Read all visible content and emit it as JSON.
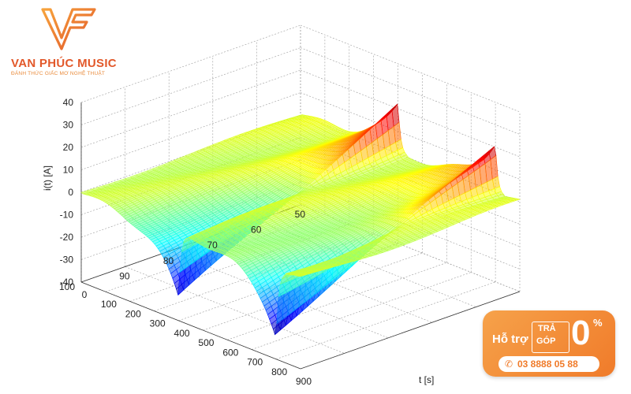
{
  "logo": {
    "name": "VAN PHÚC MUSIC",
    "tagline": "ĐÁNH THỨC GIẤC MƠ NGHỆ THUẬT",
    "brand_color": "#e2582a"
  },
  "promo": {
    "support": "Hỗ trợ",
    "tra": "TRẢ",
    "gop": "GÓP",
    "zero": "0",
    "percent": "%",
    "phone": "03 8888 05 88",
    "phone_icon": "phone-icon",
    "color": "#f07b2a"
  },
  "chart_data": {
    "type": "surface",
    "zlabel": "i(t) [A]",
    "xlabel": "t [s]",
    "ylabel": "",
    "zlim": [
      -40,
      40
    ],
    "xlim": [
      0,
      900
    ],
    "ylim": [
      50,
      100
    ],
    "z_ticks": [
      "40",
      "30",
      "20",
      "10",
      "0",
      "-10",
      "-20",
      "-30",
      "-40"
    ],
    "x_ticks": [
      "0",
      "100",
      "200",
      "300",
      "400",
      "500",
      "600",
      "700",
      "800",
      "900"
    ],
    "y_ticks": [
      "100",
      "90",
      "80",
      "70",
      "60",
      "50"
    ],
    "grid": true,
    "colormap": "jet",
    "description_values": {
      "pulses_t": [
        400,
        800
      ],
      "peak_max": 22,
      "trough_min": -30
    }
  }
}
